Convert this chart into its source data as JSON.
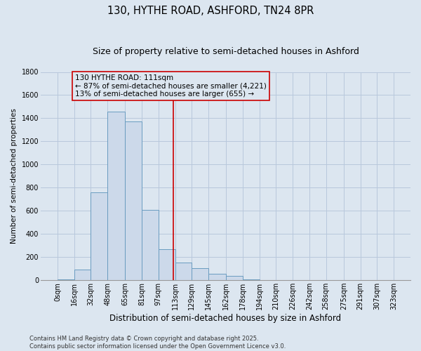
{
  "title": "130, HYTHE ROAD, ASHFORD, TN24 8PR",
  "subtitle": "Size of property relative to semi-detached houses in Ashford",
  "xlabel": "Distribution of semi-detached houses by size in Ashford",
  "ylabel": "Number of semi-detached properties",
  "bin_edges": [
    0,
    16,
    32,
    48,
    65,
    81,
    97,
    113,
    129,
    145,
    162,
    178,
    194,
    210,
    226,
    242,
    258,
    275,
    291,
    307,
    323
  ],
  "bin_labels": [
    "0sqm",
    "16sqm",
    "32sqm",
    "48sqm",
    "65sqm",
    "81sqm",
    "97sqm",
    "113sqm",
    "129sqm",
    "145sqm",
    "162sqm",
    "178sqm",
    "194sqm",
    "210sqm",
    "226sqm",
    "242sqm",
    "258sqm",
    "275sqm",
    "291sqm",
    "307sqm",
    "323sqm"
  ],
  "bar_heights": [
    5,
    90,
    760,
    1460,
    1370,
    610,
    270,
    155,
    105,
    55,
    40,
    5,
    0,
    0,
    0,
    0,
    0,
    0,
    0,
    0
  ],
  "bar_color": "#ccd9ea",
  "bar_edge_color": "#6a9cc0",
  "grid_color": "#b8c8dc",
  "background_color": "#dce6f0",
  "property_line_x": 111,
  "property_line_color": "#cc0000",
  "annotation_line1": "130 HYTHE ROAD: 111sqm",
  "annotation_line2": "← 87% of semi-detached houses are smaller (4,221)",
  "annotation_line3": "13% of semi-detached houses are larger (655) →",
  "annotation_box_color": "#cc0000",
  "ylim": [
    0,
    1800
  ],
  "yticks": [
    0,
    200,
    400,
    600,
    800,
    1000,
    1200,
    1400,
    1600,
    1800
  ],
  "footer_text": "Contains HM Land Registry data © Crown copyright and database right 2025.\nContains public sector information licensed under the Open Government Licence v3.0.",
  "title_fontsize": 10.5,
  "subtitle_fontsize": 9,
  "xlabel_fontsize": 8.5,
  "ylabel_fontsize": 7.5,
  "tick_fontsize": 7,
  "annotation_fontsize": 7.5,
  "footer_fontsize": 6
}
